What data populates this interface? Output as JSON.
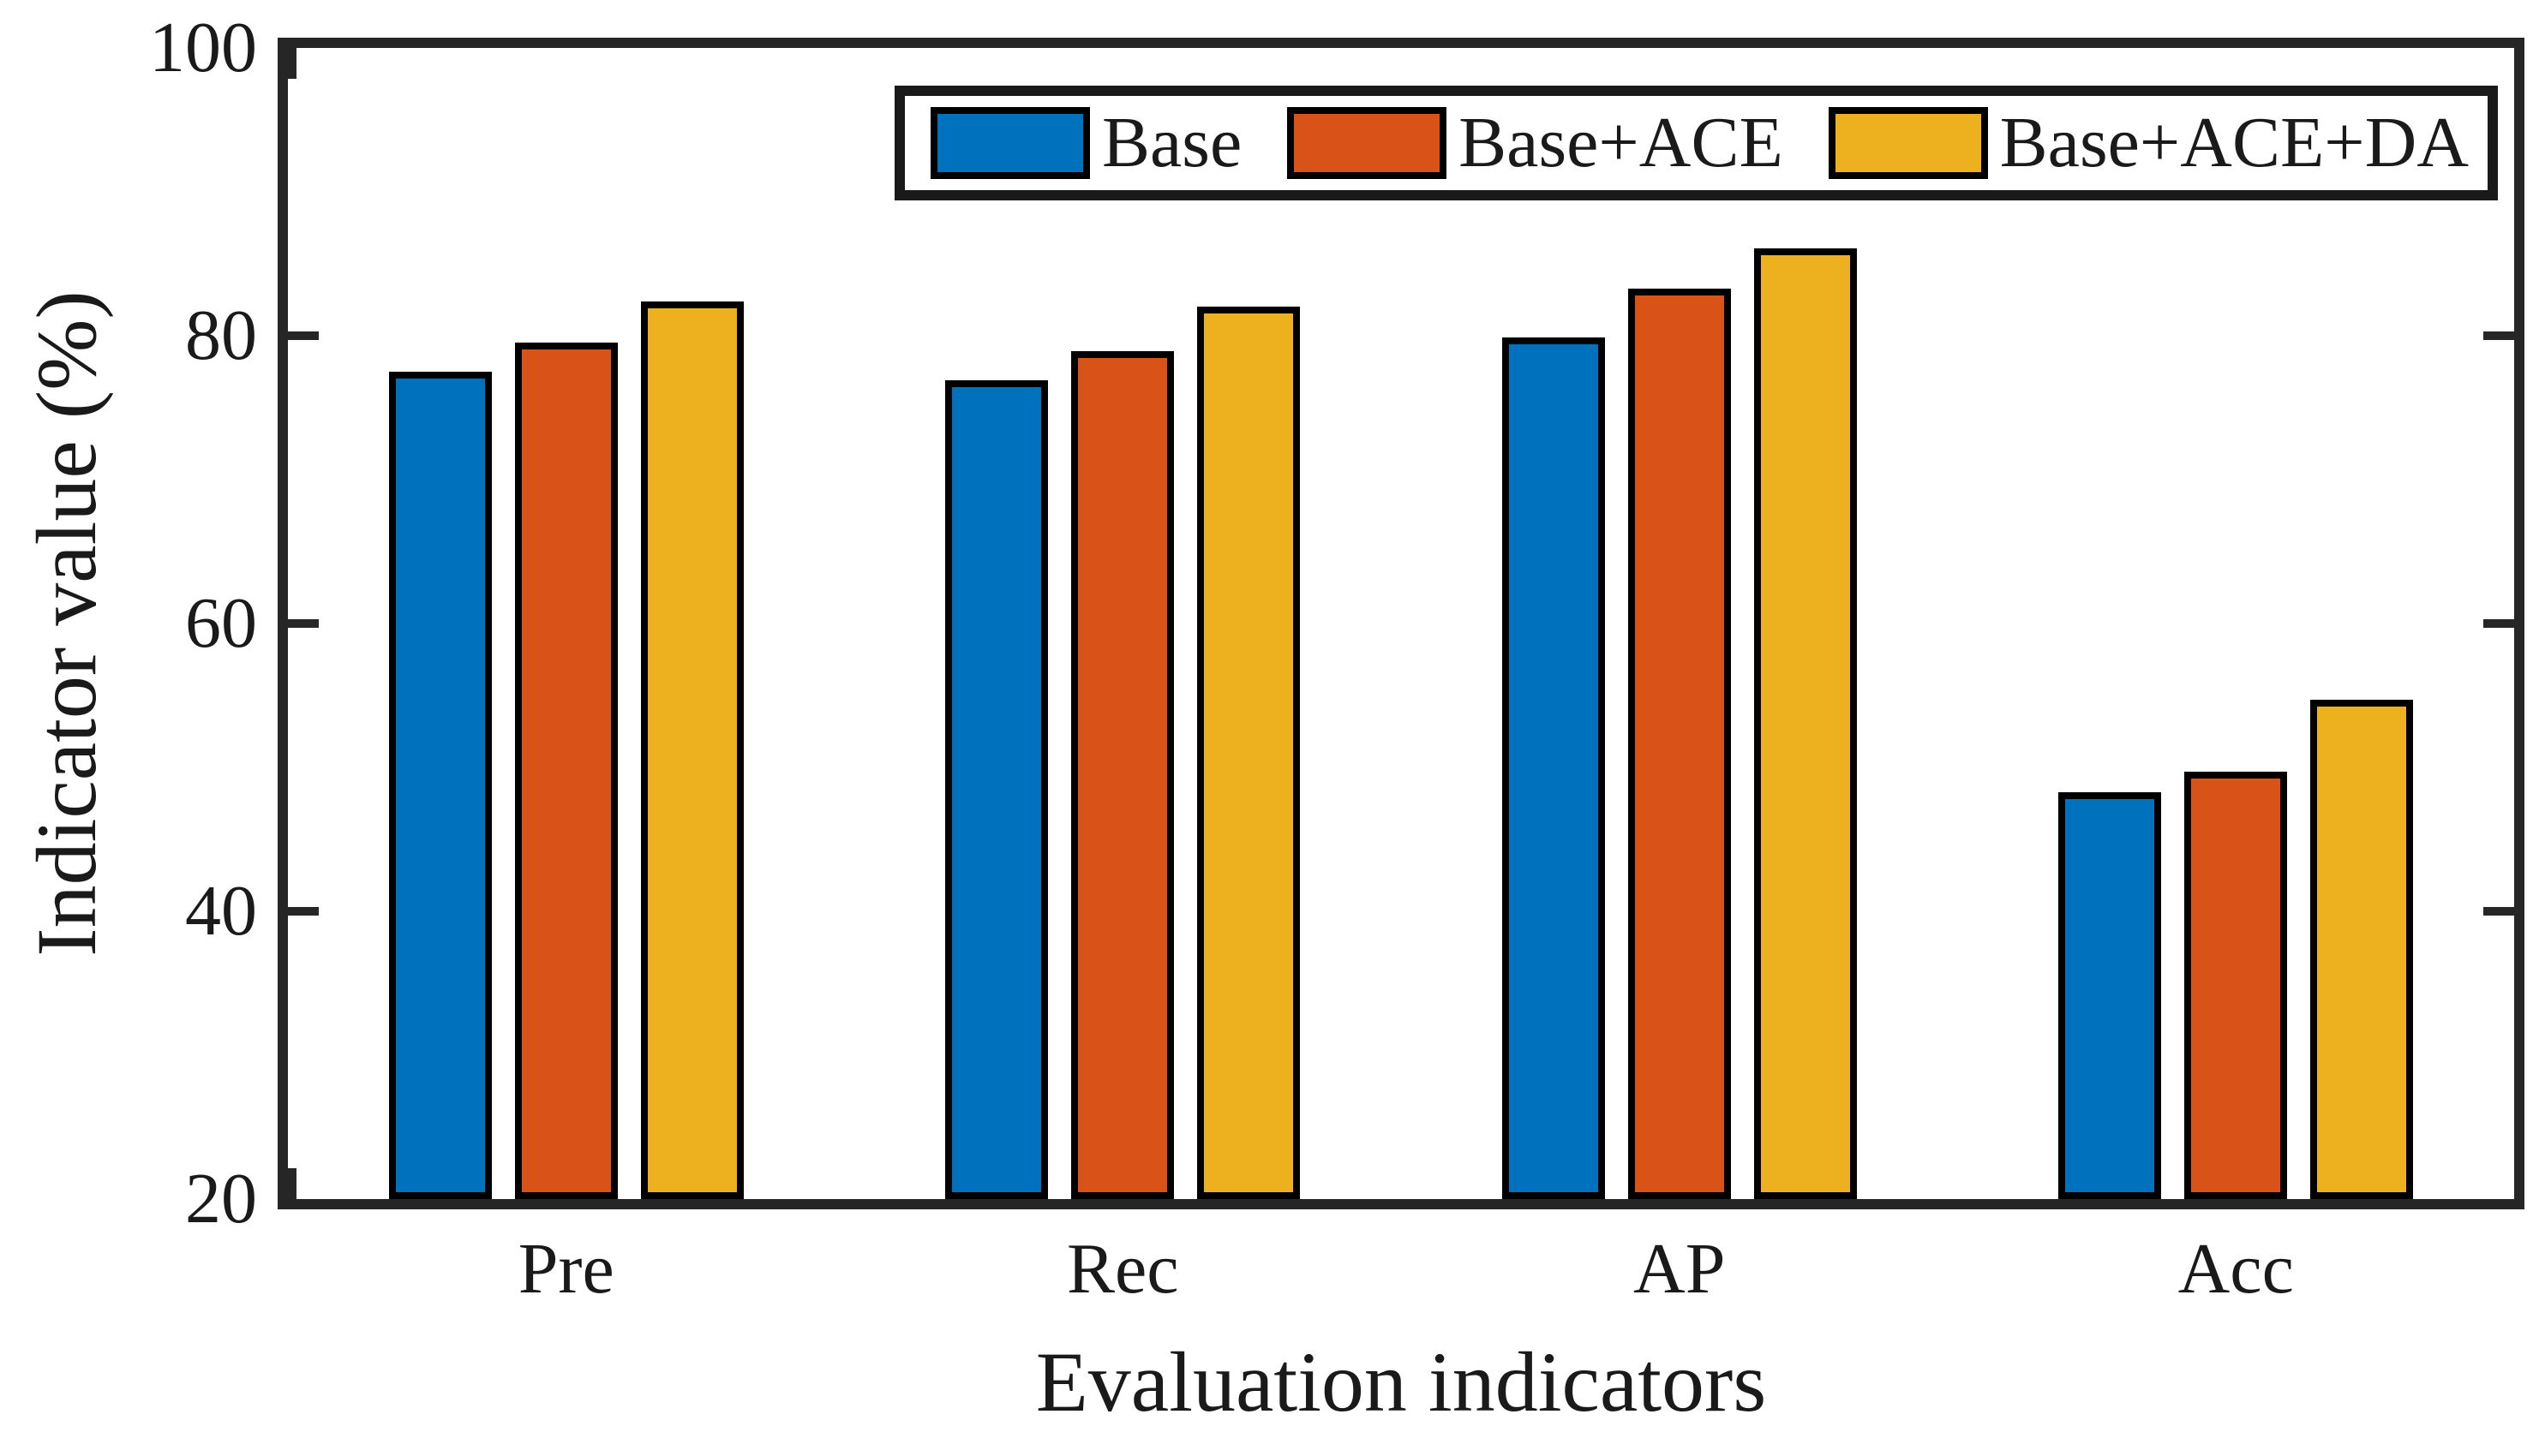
{
  "chart_data": {
    "type": "bar",
    "title": "",
    "categories": [
      "Pre",
      "Rec",
      "AP",
      "Acc"
    ],
    "series": [
      {
        "name": "Base",
        "color": "#0072BD",
        "values": [
          77.5,
          76.9,
          79.9,
          48.3
        ]
      },
      {
        "name": "Base+ACE",
        "color": "#D95319",
        "values": [
          79.5,
          78.9,
          83.3,
          49.7
        ]
      },
      {
        "name": "Base+ACE+DA",
        "color": "#EDB120",
        "values": [
          82.4,
          82.0,
          86.1,
          54.7
        ]
      }
    ],
    "xlabel": "Evaluation indicators",
    "ylabel": "Indicator value (%)",
    "ylim": [
      20,
      100
    ],
    "yticks": [
      20,
      40,
      60,
      80,
      100
    ],
    "grid": false,
    "legend_position": "top-inside",
    "axis_color": "#262626",
    "bar_edge_color": "#000000",
    "tick_direction": "in",
    "box": true
  }
}
